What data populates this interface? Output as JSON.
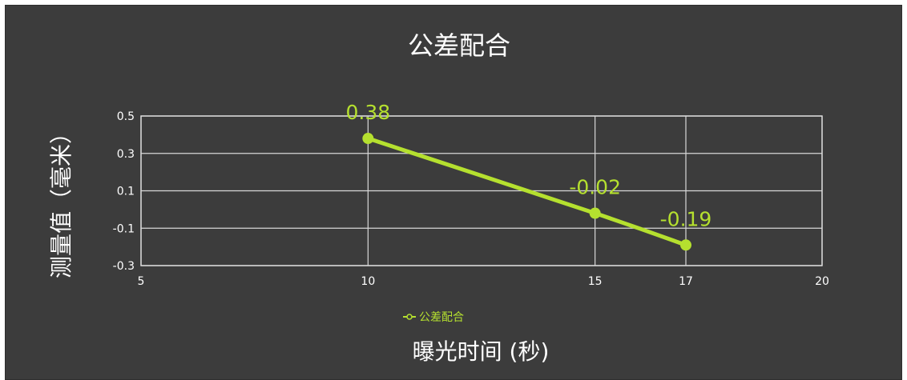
{
  "chart_data": {
    "type": "line",
    "title": "公差配合",
    "xlabel": "曝光时间 (秒)",
    "ylabel": "测量值（毫米）",
    "xlim": [
      5,
      20
    ],
    "ylim": [
      -0.3,
      0.5
    ],
    "xticks": [
      5,
      10,
      15,
      17,
      20
    ],
    "yticks": [
      0.5,
      0.3,
      0.1,
      -0.1,
      -0.3
    ],
    "x_tick_labels": [
      "5",
      "10",
      "15",
      "17",
      "20"
    ],
    "y_tick_labels": [
      "0.5",
      "0.3",
      "0.1",
      "-0.1",
      "-0.3"
    ],
    "grid": true,
    "legend_position": "bottom",
    "series": [
      {
        "name": "公差配合",
        "color": "#b5e02f",
        "x": [
          10,
          15,
          17
        ],
        "y": [
          0.38,
          -0.02,
          -0.19
        ],
        "labels": [
          "0.38",
          "-0.02",
          "-0.19"
        ]
      }
    ]
  },
  "colors": {
    "background": "#3c3c3c",
    "grid": "#d8d8d8",
    "text": "#ffffff",
    "series": "#b5e02f"
  }
}
